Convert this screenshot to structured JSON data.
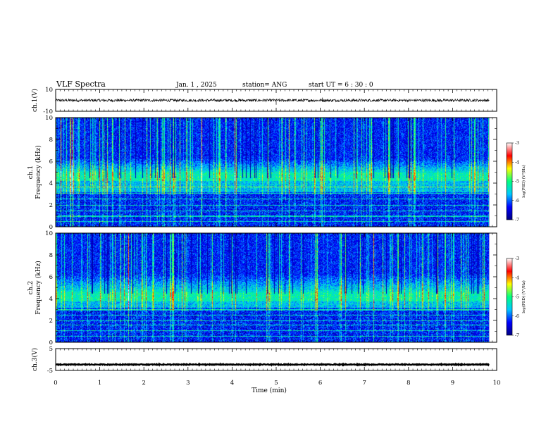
{
  "header": {
    "title": "VLF Spectra",
    "date": "Jan. 1 , 2025",
    "station": "station= ANG",
    "start": "start UT = 6 : 30 : 0"
  },
  "chart_data": [
    {
      "type": "line",
      "name": "ch1-waveform",
      "ylabel": "ch.1(V)",
      "ylim": [
        -10,
        10
      ],
      "yticks": [
        "10",
        "-10"
      ],
      "xlim": [
        0,
        10
      ],
      "x_range_of_data": [
        0,
        9.83
      ],
      "mean": 0,
      "amplitude_band": 1.2,
      "spikes": [
        {
          "x": 5.0,
          "y": -4
        },
        {
          "x": 6.05,
          "y": 2.5
        }
      ],
      "color": "#000000"
    },
    {
      "type": "heatmap",
      "name": "ch1-spectrogram",
      "ylabel": "ch.1 Frequency (kHz)",
      "ylim": [
        0,
        10
      ],
      "yticks": [
        "0",
        "2",
        "4",
        "6",
        "8",
        "10"
      ],
      "xlim": [
        0,
        10
      ],
      "x_range_of_data": [
        0,
        9.83
      ],
      "bright_band_khz": [
        4.2,
        5.0
      ],
      "narrowband_lines_khz": [
        0.5,
        1.0,
        1.5,
        2.0,
        2.6,
        3.1,
        3.7
      ],
      "colorbar": {
        "range": [
          -7,
          -3
        ],
        "ticks": [
          "-3",
          "-4",
          "-5",
          "-6",
          "-7"
        ],
        "label": "log(PSD) (V²/Hz)",
        "colors": [
          "#000080",
          "#0000ff",
          "#00c8ff",
          "#00ff80",
          "#ffff00",
          "#ff0000",
          "#ffffff"
        ]
      }
    },
    {
      "type": "heatmap",
      "name": "ch2-spectrogram",
      "ylabel": "ch.2 Frequency (kHz)",
      "ylim": [
        0,
        10
      ],
      "yticks": [
        "0",
        "2",
        "4",
        "6",
        "8",
        "10"
      ],
      "xlim": [
        0,
        10
      ],
      "x_range_of_data": [
        0,
        9.83
      ],
      "bright_band_khz": [
        3.8,
        4.6
      ],
      "narrowband_lines_khz": [
        0.6,
        1.1,
        1.6,
        2.0,
        2.5,
        3.0
      ],
      "colorbar": {
        "range": [
          -7,
          -3
        ],
        "ticks": [
          "-3",
          "-4",
          "-5",
          "-6",
          "-7"
        ],
        "label": "log(PSD) (V²/Hz)",
        "colors": [
          "#000080",
          "#0000ff",
          "#00c8ff",
          "#00ff80",
          "#ffff00",
          "#ff0000",
          "#ffffff"
        ]
      }
    },
    {
      "type": "line",
      "name": "ch3-waveform",
      "ylabel": "ch.3(V)",
      "ylim": [
        -5,
        5
      ],
      "yticks": [
        "5",
        "-5"
      ],
      "xlim": [
        0,
        10
      ],
      "x_range_of_data": [
        0,
        9.83
      ],
      "mean": -2.3,
      "amplitude_band": 0.2,
      "color": "#000000"
    }
  ],
  "xaxis": {
    "label": "Time (min)",
    "ticks": [
      "0",
      "1",
      "2",
      "3",
      "4",
      "5",
      "6",
      "7",
      "8",
      "9",
      "10"
    ]
  }
}
